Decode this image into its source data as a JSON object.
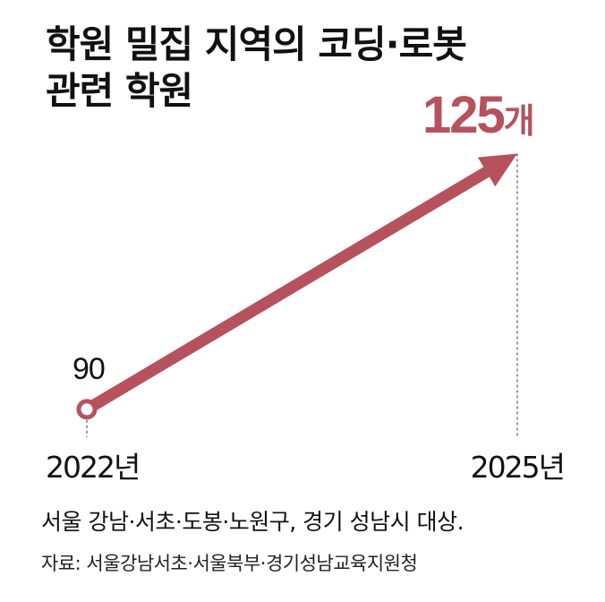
{
  "title_lines": [
    "학원 밀집 지역의 코딩·로봇",
    "관련 학원"
  ],
  "colors": {
    "accent": "#b5525e",
    "text": "#111111"
  },
  "chart_data": {
    "type": "line",
    "title": "학원 밀집 지역의 코딩·로봇 관련 학원",
    "x": [
      "2022",
      "2025"
    ],
    "tick_labels": [
      "2022년",
      "2025년"
    ],
    "values": [
      90,
      125
    ],
    "data_labels": [
      "90",
      "125"
    ],
    "unit_label": "개",
    "xlabel": "",
    "ylabel": "",
    "ylim": [
      70,
      135
    ],
    "grid": false,
    "end_marker": "arrow"
  },
  "note": "서울 강남·서초·도봉·노원구, 경기 성남시 대상.",
  "source": "자료: 서울강남서초·서울북부·경기성남교육지원청"
}
